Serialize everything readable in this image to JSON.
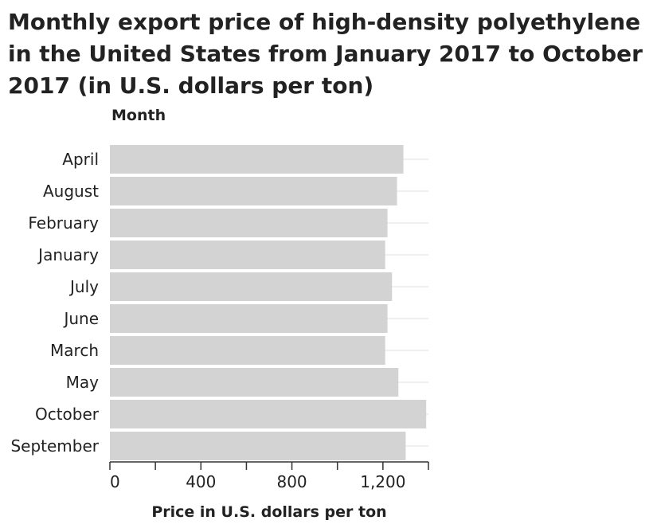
{
  "chart_data": {
    "type": "bar",
    "orientation": "horizontal",
    "title": "Monthly export price of high-density polyethylene in the United States from January 2017 to October 2017 (in U.S. dollars per ton)",
    "ylabel": "Month",
    "xlabel": "Price in U.S. dollars per ton",
    "categories": [
      "April",
      "August",
      "February",
      "January",
      "July",
      "June",
      "March",
      "May",
      "October",
      "September"
    ],
    "values": [
      1290,
      1262,
      1220,
      1210,
      1240,
      1220,
      1210,
      1268,
      1390,
      1300
    ],
    "xlim": [
      0,
      1400
    ],
    "xticks": [
      0,
      400,
      800,
      1200
    ],
    "xtick_labels": [
      "0",
      "400",
      "800",
      "1,200"
    ],
    "bar_color": "#d3d3d3",
    "grid": true
  }
}
